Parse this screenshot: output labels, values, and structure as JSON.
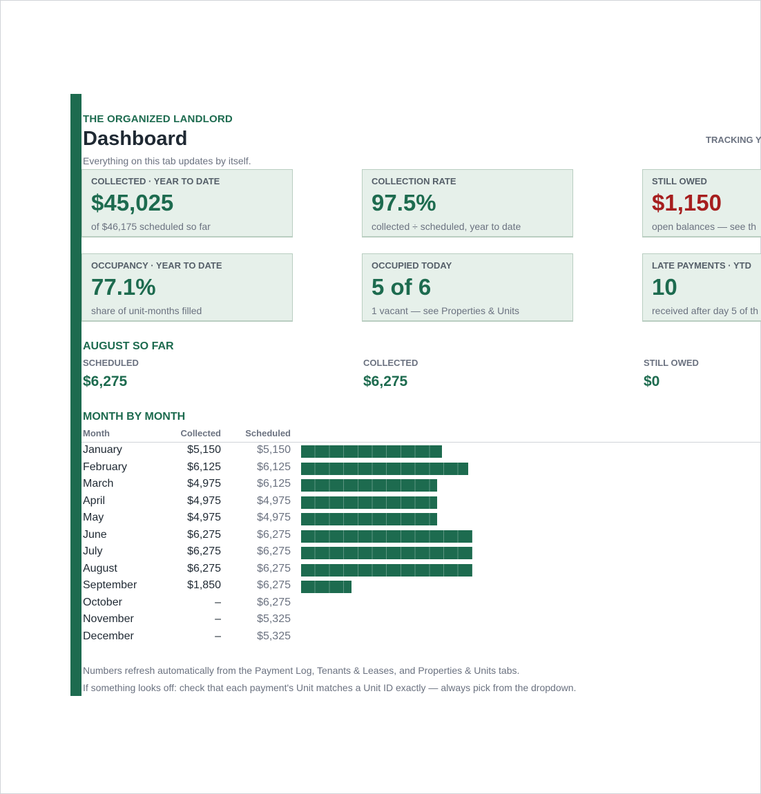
{
  "brand": "THE ORGANIZED LANDLORD",
  "title": "Dashboard",
  "tracking": "TRACKING Y",
  "subtitle": "Everything on this tab updates by itself.",
  "cards": [
    {
      "label": "COLLECTED · YEAR TO DATE",
      "value": "$45,025",
      "note": "of $46,175 scheduled so far"
    },
    {
      "label": "COLLECTION RATE",
      "value": "97.5%",
      "note": "collected ÷ scheduled, year to date"
    },
    {
      "label": "STILL OWED",
      "value": "$1,150",
      "note": "open balances — see th"
    },
    {
      "label": "OCCUPANCY · YEAR TO DATE",
      "value": "77.1%",
      "note": "share of unit-months filled"
    },
    {
      "label": "OCCUPIED TODAY",
      "value": "5 of 6",
      "note": "1 vacant — see Properties & Units"
    },
    {
      "label": "LATE PAYMENTS · YTD",
      "value": "10",
      "note": "received after day 5 of th"
    }
  ],
  "colors": {
    "accent": "#1d6b4f",
    "owed": "#a61e1e",
    "card_bg": "#e6f0ea"
  },
  "august": {
    "section": "AUGUST SO FAR",
    "scheduled_label": "SCHEDULED",
    "scheduled_value": "$6,275",
    "collected_label": "COLLECTED",
    "collected_value": "$6,275",
    "owed_label": "STILL OWED",
    "owed_value": "$0"
  },
  "monthly": {
    "section": "MONTH BY MONTH",
    "headers": {
      "month": "Month",
      "collected": "Collected",
      "scheduled": "Scheduled"
    },
    "rows": [
      {
        "month": "January",
        "collected": "$5,150",
        "scheduled": "$5,150",
        "value": 5150
      },
      {
        "month": "February",
        "collected": "$6,125",
        "scheduled": "$6,125",
        "value": 6125
      },
      {
        "month": "March",
        "collected": "$4,975",
        "scheduled": "$6,125",
        "value": 4975
      },
      {
        "month": "April",
        "collected": "$4,975",
        "scheduled": "$4,975",
        "value": 4975
      },
      {
        "month": "May",
        "collected": "$4,975",
        "scheduled": "$4,975",
        "value": 4975
      },
      {
        "month": "June",
        "collected": "$6,275",
        "scheduled": "$6,275",
        "value": 6275
      },
      {
        "month": "July",
        "collected": "$6,275",
        "scheduled": "$6,275",
        "value": 6275
      },
      {
        "month": "August",
        "collected": "$6,275",
        "scheduled": "$6,275",
        "value": 6275
      },
      {
        "month": "September",
        "collected": "$1,850",
        "scheduled": "$6,275",
        "value": 1850
      },
      {
        "month": "October",
        "collected": "–",
        "scheduled": "$6,275",
        "value": 0
      },
      {
        "month": "November",
        "collected": "–",
        "scheduled": "$5,325",
        "value": 0
      },
      {
        "month": "December",
        "collected": "–",
        "scheduled": "$5,325",
        "value": 0
      }
    ]
  },
  "footer": [
    "Numbers refresh automatically from the Payment Log, Tenants & Leases, and Properties & Units tabs.",
    "If something looks off: check that each payment's Unit matches a Unit ID exactly — always pick from the dropdown."
  ]
}
